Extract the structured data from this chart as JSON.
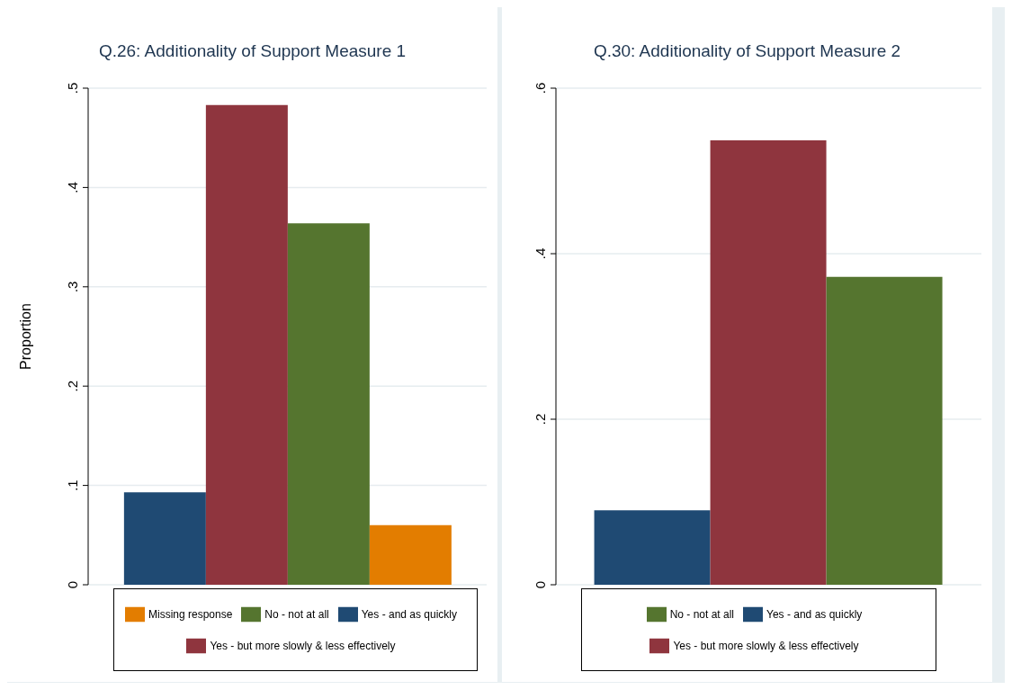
{
  "chart_data": [
    {
      "type": "bar",
      "title": "Q.26: Additionality of Support Measure 1",
      "ylabel": "Proportion",
      "categories": [
        null
      ],
      "series": [
        {
          "name": "Yes - and as quickly",
          "color": "#1f4a73",
          "values": [
            0.093
          ]
        },
        {
          "name": "Yes - but more slowly & less effectively",
          "color": "#8f353e",
          "values": [
            0.483
          ]
        },
        {
          "name": "No - not at all",
          "color": "#55752f",
          "values": [
            0.364
          ]
        },
        {
          "name": "Missing response",
          "color": "#e37d00",
          "values": [
            0.06
          ]
        }
      ],
      "ylim": [
        0,
        0.5
      ],
      "yticks": [
        0,
        {
          "value": 0.1,
          "label": ".1"
        },
        {
          "value": 0.2,
          "label": ".2"
        },
        {
          "value": 0.3,
          "label": ".3"
        },
        {
          "value": 0.4,
          "label": ".4"
        },
        {
          "value": 0.5,
          "label": ".5"
        }
      ],
      "grid": "y",
      "legend": "bottom"
    },
    {
      "type": "bar",
      "title": "Q.30: Additionality of Support Measure 2",
      "categories": [
        null
      ],
      "series": [
        {
          "name": "Yes - and as quickly",
          "color": "#1f4a73",
          "values": [
            0.09
          ]
        },
        {
          "name": "Yes - but more slowly & less effectively",
          "color": "#8f353e",
          "values": [
            0.537
          ]
        },
        {
          "name": "No - not at all",
          "color": "#55752f",
          "values": [
            0.372
          ]
        }
      ],
      "ylim": [
        0,
        0.6
      ],
      "yticks": [
        0,
        {
          "value": 0.2,
          "label": ".2"
        },
        {
          "value": 0.4,
          "label": ".4"
        },
        {
          "value": 0.6,
          "label": ".6"
        }
      ],
      "grid": "y",
      "legend": "bottom"
    }
  ]
}
